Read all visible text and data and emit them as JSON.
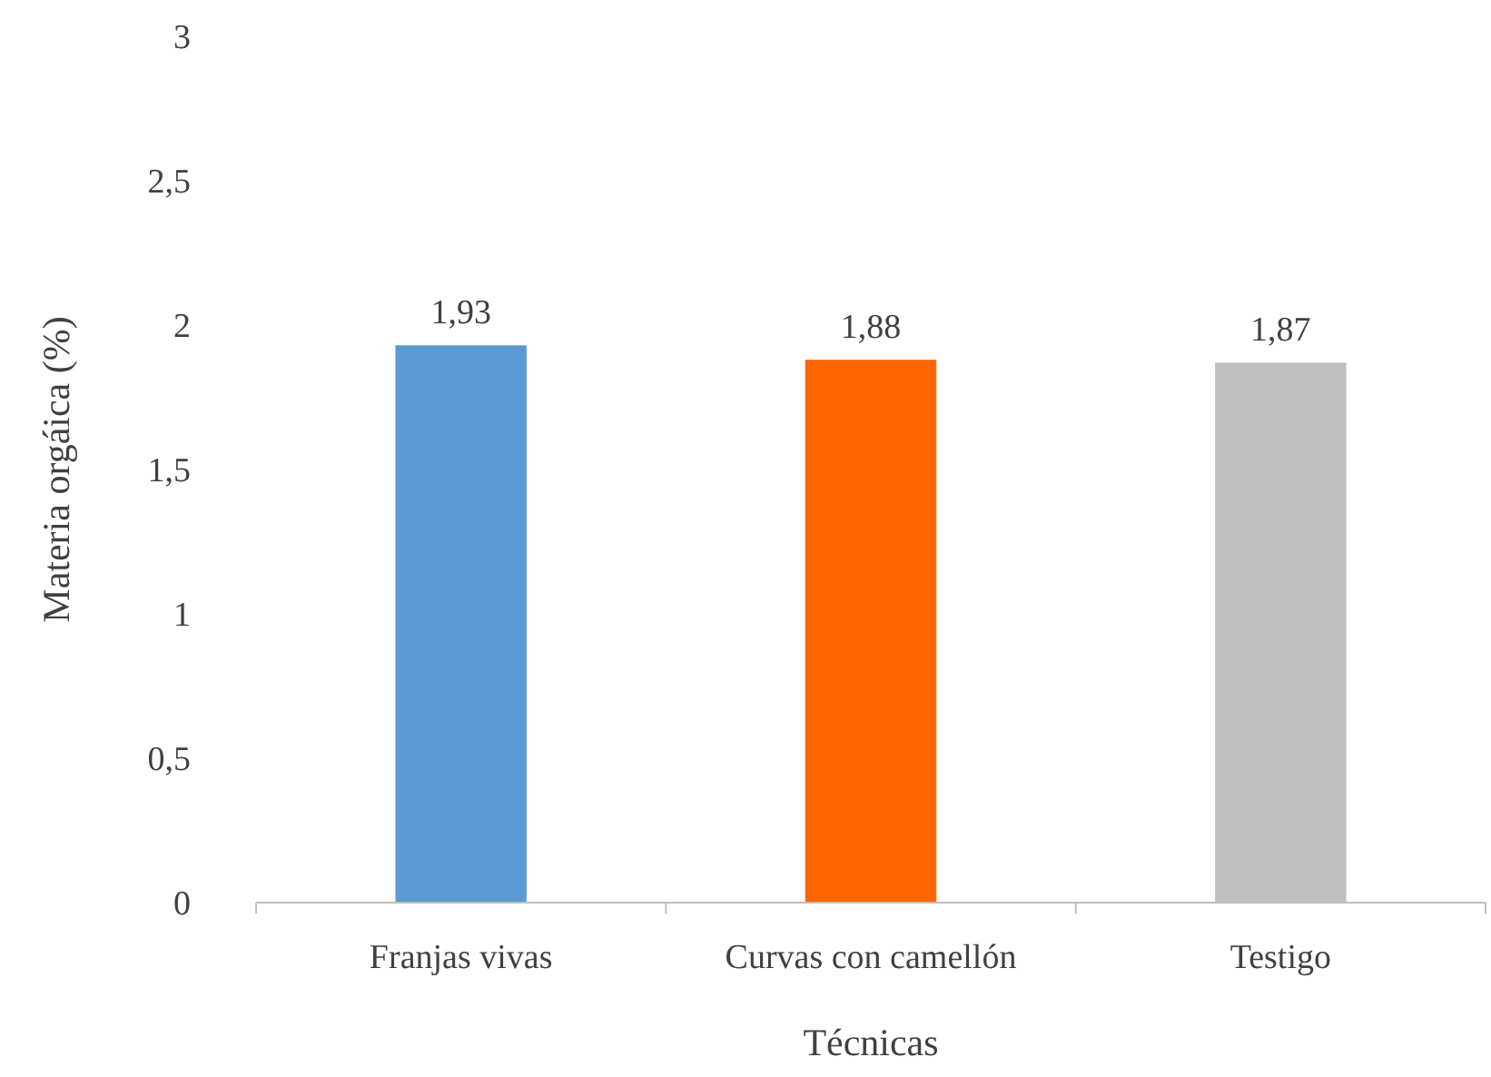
{
  "chart_data": {
    "type": "bar",
    "xlabel": "Técnicas",
    "ylabel": "Materia orgáica (%)",
    "categories": [
      "Franjas vivas",
      "Curvas con camellón",
      "Testigo"
    ],
    "values": [
      1.93,
      1.88,
      1.87
    ],
    "colors": [
      "#5b9bd5",
      "#ff6600",
      "#bfbfbf"
    ],
    "value_labels": [
      "1,93",
      "1,88",
      "1,87"
    ],
    "ylim": [
      0,
      3
    ],
    "yticks": [
      0,
      {
        "value": 0.5,
        "label": "0,5"
      },
      1,
      {
        "value": 1.5,
        "label": "1,5"
      },
      2,
      {
        "value": 2.5,
        "label": "2,5"
      },
      3
    ],
    "grid": false
  }
}
